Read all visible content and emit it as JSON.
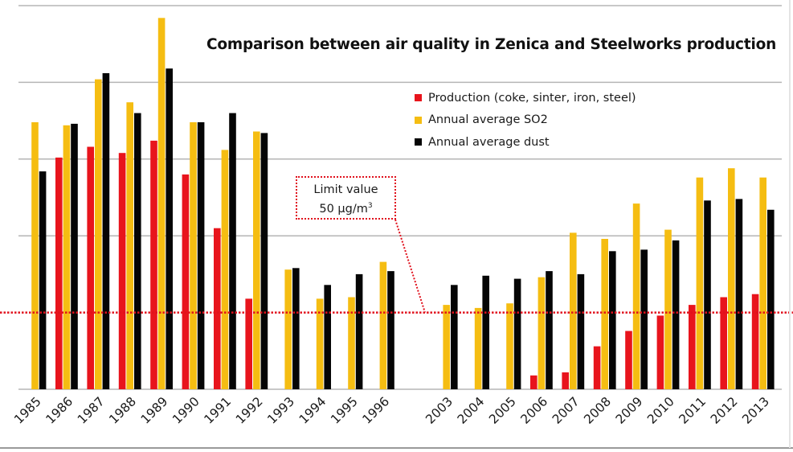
{
  "chart_data": {
    "type": "bar",
    "title": "Comparison between air quality in Zenica and Steelworks production",
    "xlabel": "",
    "ylabel": "",
    "ylim": [
      0,
      250
    ],
    "grid": true,
    "legend_position": "top-right",
    "categories": [
      "1985",
      "1986",
      "1987",
      "1988",
      "1989",
      "1990",
      "1991",
      "1992",
      "1993",
      "1994",
      "1995",
      "1996",
      "",
      "2003",
      "2004",
      "2005",
      "2006",
      "2007",
      "2008",
      "2009",
      "2010",
      "2011",
      "2012",
      "2013"
    ],
    "series": [
      {
        "name": "Production (coke, sinter, iron, steel)",
        "color": "#e8141c",
        "values": [
          null,
          151,
          158,
          154,
          162,
          140,
          105,
          59,
          null,
          null,
          null,
          null,
          null,
          null,
          null,
          null,
          9,
          11,
          28,
          38,
          48,
          55,
          60,
          62
        ]
      },
      {
        "name": "Annual average SO2",
        "color": "#f5bd12",
        "values": [
          174,
          172,
          202,
          187,
          242,
          174,
          156,
          168,
          78,
          59,
          60,
          83,
          null,
          55,
          53,
          56,
          73,
          102,
          98,
          121,
          104,
          138,
          144,
          138
        ]
      },
      {
        "name": "Annual average dust",
        "color": "#050505",
        "values": [
          142,
          173,
          206,
          180,
          209,
          174,
          180,
          167,
          79,
          68,
          75,
          77,
          null,
          68,
          74,
          72,
          77,
          75,
          90,
          91,
          97,
          123,
          124,
          117
        ]
      }
    ],
    "annotations": [
      {
        "text_line1": "Limit value",
        "text_line2": "50 μg/m",
        "text_sup": "3",
        "y_value": 50,
        "color": "#e0101c"
      }
    ]
  }
}
